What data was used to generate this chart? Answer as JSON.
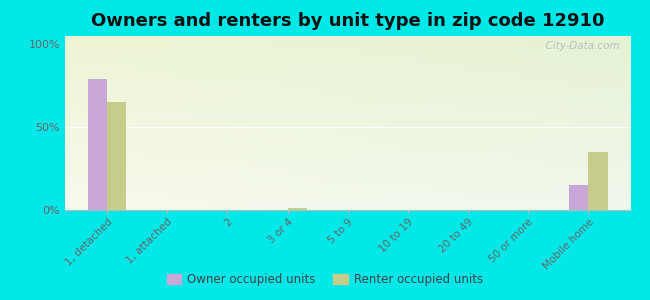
{
  "title": "Owners and renters by unit type in zip code 12910",
  "categories": [
    "1, detached",
    "1, attached",
    "2",
    "3 or 4",
    "5 to 9",
    "10 to 19",
    "20 to 49",
    "50 or more",
    "Mobile home"
  ],
  "owner_values": [
    79,
    0,
    0,
    0,
    0,
    0,
    0,
    0,
    15
  ],
  "renter_values": [
    65,
    0,
    0,
    1,
    0,
    0,
    0,
    0,
    35
  ],
  "owner_color": "#c9a8d8",
  "renter_color": "#c8cc8a",
  "yticks": [
    0,
    50,
    100
  ],
  "ytick_labels": [
    "0%",
    "50%",
    "100%"
  ],
  "ylim": [
    0,
    105
  ],
  "outer_bg": "#00e8e8",
  "title_fontsize": 13,
  "watermark": "  City-Data.com",
  "legend_owner": "Owner occupied units",
  "legend_renter": "Renter occupied units",
  "bar_width": 0.32,
  "n_cats": 9
}
